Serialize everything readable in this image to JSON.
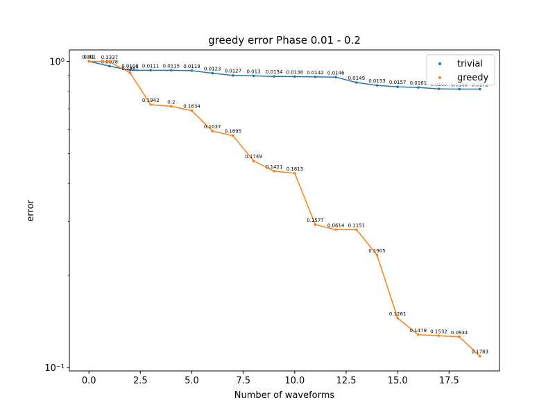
{
  "chart_data": {
    "type": "line",
    "title": "greedy error Phase 0.01 - 0.2",
    "xlabel": "Number of waveforms",
    "ylabel": "error",
    "yscale": "log",
    "xlim": [
      -0.95,
      19.95
    ],
    "ylim": [
      0.0975,
      1.09
    ],
    "xticks": [
      0.0,
      2.5,
      5.0,
      7.5,
      10.0,
      12.5,
      15.0,
      17.5
    ],
    "xtick_labels": [
      "0.0",
      "2.5",
      "5.0",
      "7.5",
      "10.0",
      "12.5",
      "15.0",
      "17.5"
    ],
    "yticks": [
      1.0,
      0.1
    ],
    "ytick_labels": [
      "10⁰",
      "10⁻¹"
    ],
    "grid": false,
    "legend_position": "top-right",
    "series": [
      {
        "name": "trivial",
        "color": "#1f77b4",
        "x": [
          0,
          1,
          2,
          3,
          4,
          5,
          6,
          7,
          8,
          9,
          10,
          11,
          12,
          13,
          14,
          15,
          16,
          17,
          18,
          19
        ],
        "y": [
          1.0,
          0.965,
          0.935,
          0.935,
          0.935,
          0.933,
          0.915,
          0.9,
          0.897,
          0.893,
          0.892,
          0.89,
          0.888,
          0.853,
          0.835,
          0.826,
          0.822,
          0.813,
          0.812,
          0.812
        ],
        "labels": [
          "0.001",
          "0.0078",
          "0.0108",
          "0.0111",
          "0.0115",
          "0.0119",
          "0.0123",
          "0.0127",
          "0.013",
          "0.0134",
          "0.0138",
          "0.0142",
          "0.0146",
          "0.0149",
          "0.0153",
          "0.0157",
          "0.0161",
          "0.0165",
          "0.0169",
          "0.0172"
        ]
      },
      {
        "name": "greedy",
        "color": "#ff7f0e",
        "x": [
          0,
          1,
          2,
          3,
          4,
          5,
          6,
          7,
          8,
          9,
          10,
          11,
          12,
          13,
          14,
          15,
          16,
          17,
          18,
          19
        ],
        "y": [
          1.0,
          0.997,
          0.917,
          0.722,
          0.713,
          0.69,
          0.592,
          0.572,
          0.473,
          0.438,
          0.431,
          0.293,
          0.282,
          0.282,
          0.233,
          0.145,
          0.128,
          0.127,
          0.126,
          0.109
        ],
        "labels": [
          "0.01",
          "0.1337",
          "0.1867",
          "0.1943",
          "0.2",
          "0.1634",
          "0.1037",
          "0.1695",
          "0.1749",
          "0.1421",
          "0.1813",
          "0.1577",
          "0.0614",
          "0.1151",
          "0.1905",
          "0.1261",
          "0.1478",
          "0.1532",
          "0.0934",
          "0.1783"
        ]
      }
    ]
  }
}
